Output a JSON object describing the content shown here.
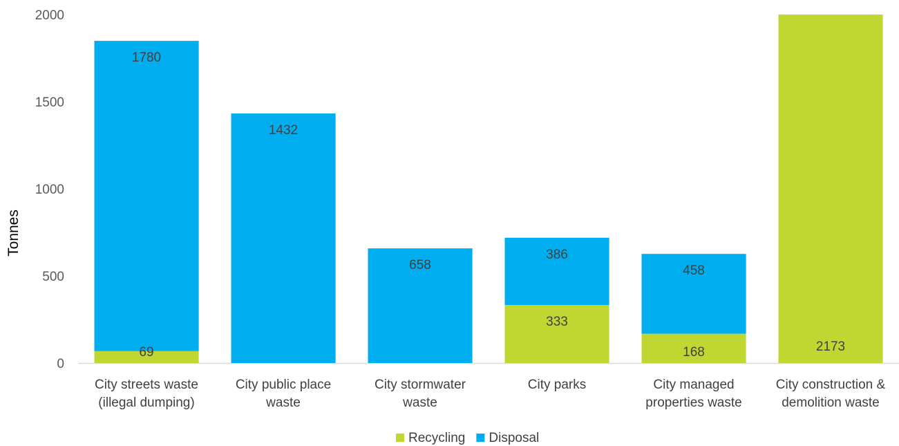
{
  "chart_data": {
    "type": "bar",
    "stacked": true,
    "categories": [
      [
        "City streets waste",
        "(illegal dumping)"
      ],
      [
        "City public place",
        "waste"
      ],
      [
        "City stormwater",
        "waste"
      ],
      [
        "City parks"
      ],
      [
        "City managed",
        "properties waste"
      ],
      [
        "City construction &",
        "demolition waste"
      ]
    ],
    "series": [
      {
        "name": "Recycling",
        "color": "#bfd730",
        "values": [
          69,
          0,
          0,
          333,
          168,
          2173
        ],
        "labels": [
          "69",
          "",
          "",
          "333",
          "168",
          "2173"
        ]
      },
      {
        "name": "Disposal",
        "color": "#00aeef",
        "values": [
          1780,
          1432,
          658,
          386,
          458,
          0
        ],
        "labels": [
          "1780",
          "1432",
          "658",
          "386",
          "458",
          ""
        ]
      }
    ],
    "ylabel": "Tonnes",
    "xlabel": "",
    "ylim": [
      0,
      2000
    ],
    "yticks": [
      0,
      500,
      1000,
      1500,
      2000
    ],
    "grid": false,
    "legend": "bottom-center"
  }
}
